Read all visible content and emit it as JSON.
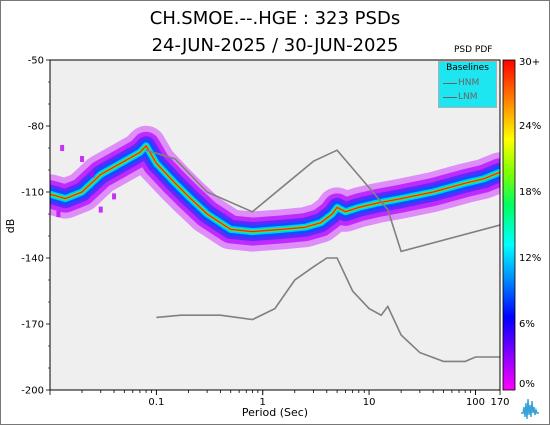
{
  "header": {
    "line1": "CH.SMOE.--.HGE : 323 PSDs",
    "line2": "24-JUN-2025 / 30-JUN-2025"
  },
  "chart_data": {
    "type": "heatmap",
    "title": "CH.SMOE.--.HGE : 323 PSDs",
    "subtitle": "24-JUN-2025 / 30-JUN-2025",
    "xlabel": "Period (Sec)",
    "ylabel": "dB",
    "x_scale": "log",
    "xlim": [
      0.01,
      170
    ],
    "ylim": [
      -200,
      -50
    ],
    "x_ticks": [
      {
        "value": 0.1,
        "label": "0.1"
      },
      {
        "value": 1,
        "label": "1"
      },
      {
        "value": 10,
        "label": "10"
      },
      {
        "value": 100,
        "label": "100"
      },
      {
        "value": 170,
        "label": "170"
      }
    ],
    "y_ticks": [
      -50,
      -80,
      -110,
      -140,
      -170,
      -200
    ],
    "grid": false,
    "background": "#efefef",
    "colorbar": {
      "title": "PSD PDF",
      "ticks": [
        "30+",
        "24%",
        "18%",
        "12%",
        "6%",
        "0%"
      ],
      "colors": [
        "#ff00ff",
        "#8000ff",
        "#0000ff",
        "#00ffff",
        "#00ff40",
        "#c0ff00",
        "#ffff00",
        "#ff8000",
        "#ff0000"
      ]
    },
    "legend": {
      "title": "Baselines",
      "entries": [
        "HNM",
        "LNM"
      ],
      "placement": "top-right",
      "color": "#1ee6f0"
    },
    "series": [
      {
        "name": "HNM",
        "color": "#808080",
        "points": [
          [
            0.08,
            -91
          ],
          [
            0.15,
            -95
          ],
          [
            0.3,
            -110
          ],
          [
            0.8,
            -119
          ],
          [
            3,
            -96
          ],
          [
            5,
            -91
          ],
          [
            10,
            -108
          ],
          [
            15,
            -118
          ],
          [
            20,
            -137
          ],
          [
            170,
            -125
          ]
        ]
      },
      {
        "name": "LNM",
        "color": "#808080",
        "points": [
          [
            0.1,
            -167
          ],
          [
            0.17,
            -166
          ],
          [
            0.4,
            -166
          ],
          [
            0.8,
            -168
          ],
          [
            1.3,
            -163
          ],
          [
            2,
            -150
          ],
          [
            3,
            -144
          ],
          [
            4,
            -140
          ],
          [
            5,
            -140
          ],
          [
            7,
            -155
          ],
          [
            10,
            -163
          ],
          [
            13,
            -166
          ],
          [
            15,
            -162
          ],
          [
            20,
            -175
          ],
          [
            30,
            -183
          ],
          [
            50,
            -187
          ],
          [
            80,
            -187
          ],
          [
            100,
            -185
          ],
          [
            170,
            -185
          ]
        ]
      }
    ],
    "psd_mode": {
      "description_units": "dB vs period",
      "points": [
        [
          0.01,
          -111
        ],
        [
          0.014,
          -113
        ],
        [
          0.02,
          -110
        ],
        [
          0.03,
          -102
        ],
        [
          0.05,
          -96
        ],
        [
          0.07,
          -92
        ],
        [
          0.08,
          -89
        ],
        [
          0.1,
          -97
        ],
        [
          0.15,
          -106
        ],
        [
          0.2,
          -112
        ],
        [
          0.3,
          -120
        ],
        [
          0.5,
          -127
        ],
        [
          0.8,
          -128
        ],
        [
          1.5,
          -127
        ],
        [
          2.5,
          -126
        ],
        [
          3.5,
          -124
        ],
        [
          4.5,
          -120
        ],
        [
          5,
          -117
        ],
        [
          6,
          -119
        ],
        [
          8,
          -117
        ],
        [
          12,
          -115
        ],
        [
          20,
          -113
        ],
        [
          40,
          -110
        ],
        [
          80,
          -106
        ],
        [
          120,
          -104
        ],
        [
          170,
          -101
        ]
      ]
    }
  }
}
